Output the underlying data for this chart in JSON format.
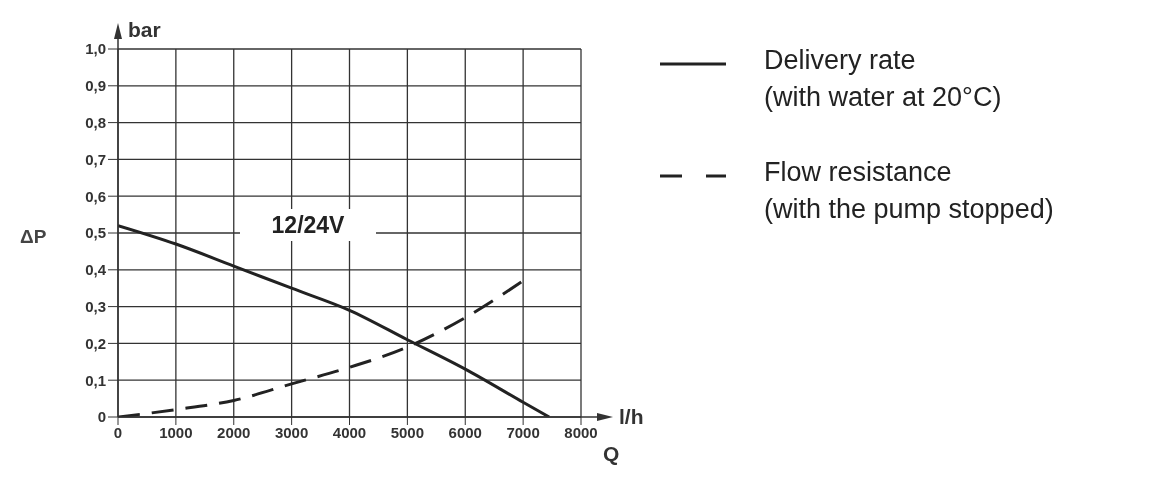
{
  "chart_data": {
    "type": "line",
    "xlabel": "Q",
    "ylabel": "ΔP",
    "annotations": [
      "12/24V",
      "bar",
      "l/h"
    ],
    "xlim": [
      0,
      8000
    ],
    "xticks": [
      0,
      1000,
      2000,
      3000,
      4000,
      5000,
      6000,
      7000,
      8000
    ],
    "ylim": [
      0,
      1
    ],
    "yticks": [
      {
        "value": 0,
        "label": "0"
      },
      {
        "value": 0.1,
        "label": "0,1"
      },
      {
        "value": 0.2,
        "label": "0,2"
      },
      {
        "value": 0.3,
        "label": "0,3"
      },
      {
        "value": 0.4,
        "label": "0,4"
      },
      {
        "value": 0.5,
        "label": "0,5"
      },
      {
        "value": 0.6,
        "label": "0,6"
      },
      {
        "value": 0.7,
        "label": "0,7"
      },
      {
        "value": 0.8,
        "label": "0,8"
      },
      {
        "value": 0.9,
        "label": "0,9"
      },
      {
        "value": 1,
        "label": "1,0"
      }
    ],
    "grid": true,
    "legend": "right",
    "marker": "none",
    "series": [
      {
        "name": "Delivery rate\n(with water at 20°C)",
        "color": "#222222",
        "line_style": "solid",
        "x": [
          0,
          1000,
          2000,
          3000,
          4000,
          5000,
          6000,
          7000,
          7450
        ],
        "values": [
          0.52,
          0.47,
          0.41,
          0.35,
          0.29,
          0.21,
          0.13,
          0.04,
          0
        ]
      },
      {
        "name": "Flow resistance\n(with the pump stopped)",
        "color": "#222222",
        "line_style": "dashed",
        "x": [
          0,
          1000,
          2000,
          3000,
          4000,
          5000,
          6000,
          7000
        ],
        "values": [
          0,
          0.02,
          0.045,
          0.09,
          0.135,
          0.19,
          0.27,
          0.37
        ]
      }
    ]
  }
}
